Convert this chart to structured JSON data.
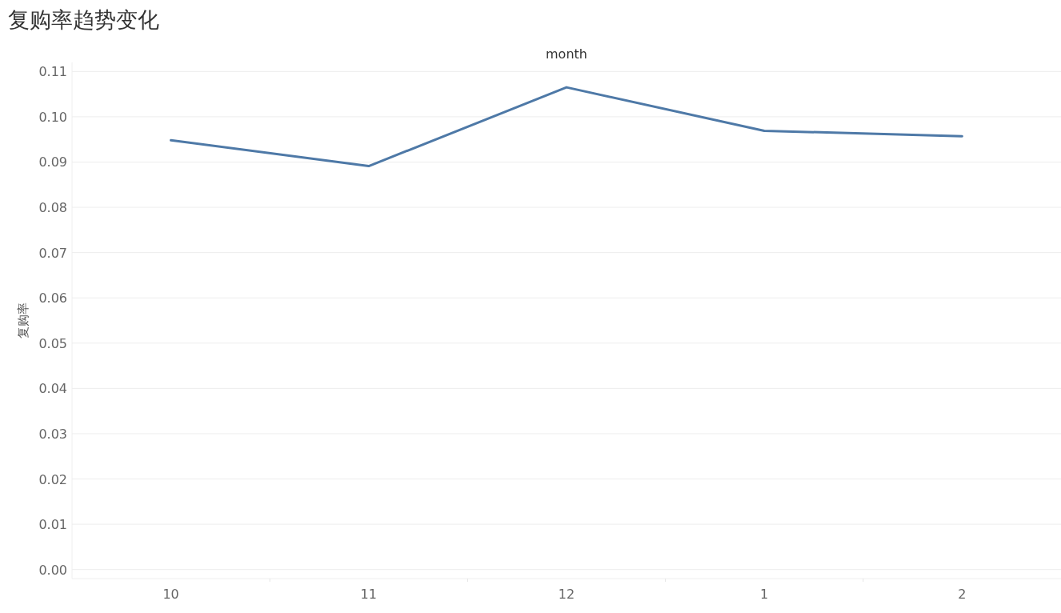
{
  "chart_data": {
    "type": "line",
    "title": "复购率趋势变化",
    "xlabel": "month",
    "ylabel": "复购率",
    "categories": [
      "10",
      "11",
      "12",
      "1",
      "2"
    ],
    "series": [
      {
        "color": "#4e79a7",
        "values": [
          0.0948,
          0.0891,
          0.1065,
          0.0969,
          0.0957
        ]
      }
    ],
    "ylim": [
      -0.002,
      0.112
    ],
    "yticks": [
      {
        "value": 0,
        "label": "0.00"
      },
      {
        "value": 0.01,
        "label": "0.01"
      },
      {
        "value": 0.02,
        "label": "0.02"
      },
      {
        "value": 0.03,
        "label": "0.03"
      },
      {
        "value": 0.04,
        "label": "0.04"
      },
      {
        "value": 0.05,
        "label": "0.05"
      },
      {
        "value": 0.06,
        "label": "0.06"
      },
      {
        "value": 0.07,
        "label": "0.07"
      },
      {
        "value": 0.08,
        "label": "0.08"
      },
      {
        "value": 0.09,
        "label": "0.09"
      },
      {
        "value": 0.1,
        "label": "0.10"
      },
      {
        "value": 0.11,
        "label": "0.11"
      }
    ],
    "grid": "y",
    "marker": "none",
    "line_style": "solid"
  }
}
